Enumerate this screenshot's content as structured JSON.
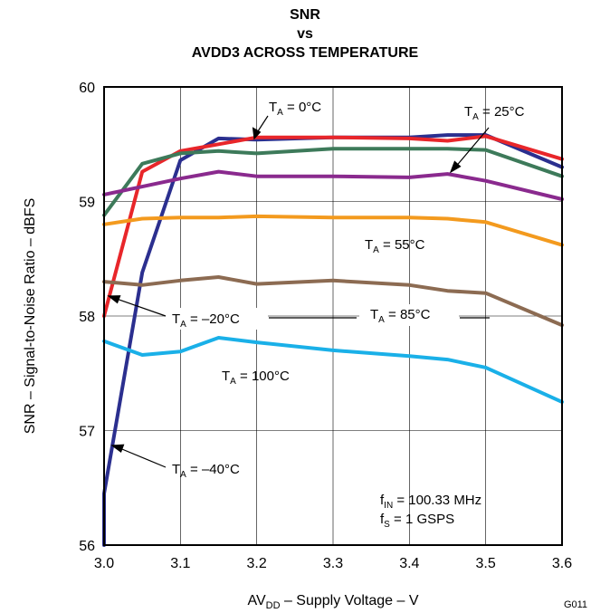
{
  "chart_data": {
    "type": "line",
    "title": [
      "SNR",
      "vs",
      "AVDD3 ACROSS TEMPERATURE"
    ],
    "xlabel": {
      "pre": "AV",
      "sub": "DD",
      "post": " – Supply Voltage – V"
    },
    "ylabel": "SNR – Signal-to-Noise Ratio – dBFS",
    "xlim": [
      3.0,
      3.6
    ],
    "ylim": [
      56,
      60
    ],
    "x_ticks": [
      3.0,
      3.1,
      3.2,
      3.3,
      3.4,
      3.5,
      3.6
    ],
    "y_ticks": [
      56,
      57,
      58,
      59,
      60
    ],
    "x_tick_labels": [
      "3.0",
      "3.1",
      "3.2",
      "3.3",
      "3.4",
      "3.5",
      "3.6"
    ],
    "y_tick_labels": [
      "56",
      "57",
      "58",
      "59",
      "60"
    ],
    "grid": true,
    "series": [
      {
        "name": "T_A = –40°C",
        "color": "#2b2f8f",
        "x": [
          3.0,
          3.0,
          3.05,
          3.1,
          3.15,
          3.2,
          3.3,
          3.4,
          3.45,
          3.5,
          3.6
        ],
        "y": [
          56.0,
          56.45,
          58.38,
          59.36,
          59.55,
          59.54,
          59.56,
          59.56,
          59.58,
          59.58,
          59.3
        ]
      },
      {
        "name": "T_A = –20°C",
        "color": "#e8262a",
        "x": [
          3.0,
          3.05,
          3.1,
          3.15,
          3.2,
          3.3,
          3.4,
          3.45,
          3.5,
          3.6
        ],
        "y": [
          58.0,
          59.26,
          59.44,
          59.5,
          59.56,
          59.56,
          59.55,
          59.53,
          59.57,
          59.37
        ]
      },
      {
        "name": "T_A = 0°C",
        "color": "#3d7a5a",
        "x": [
          3.0,
          3.05,
          3.1,
          3.15,
          3.2,
          3.3,
          3.4,
          3.45,
          3.5,
          3.6
        ],
        "y": [
          58.88,
          59.33,
          59.42,
          59.44,
          59.42,
          59.46,
          59.46,
          59.46,
          59.45,
          59.22
        ]
      },
      {
        "name": "T_A = 25°C",
        "color": "#8a2a8e",
        "x": [
          3.0,
          3.05,
          3.1,
          3.15,
          3.2,
          3.3,
          3.4,
          3.45,
          3.5,
          3.6
        ],
        "y": [
          59.06,
          59.13,
          59.2,
          59.26,
          59.22,
          59.22,
          59.21,
          59.24,
          59.18,
          59.02
        ]
      },
      {
        "name": "T_A = 55°C",
        "color": "#f39a1e",
        "x": [
          3.0,
          3.05,
          3.1,
          3.15,
          3.2,
          3.3,
          3.4,
          3.45,
          3.5,
          3.6
        ],
        "y": [
          58.8,
          58.85,
          58.86,
          58.86,
          58.87,
          58.86,
          58.86,
          58.85,
          58.82,
          58.62
        ]
      },
      {
        "name": "T_A = 85°C",
        "color": "#8c6b52",
        "x": [
          3.0,
          3.05,
          3.1,
          3.15,
          3.2,
          3.3,
          3.4,
          3.45,
          3.5,
          3.6
        ],
        "y": [
          58.3,
          58.27,
          58.31,
          58.34,
          58.28,
          58.31,
          58.27,
          58.22,
          58.2,
          57.92
        ]
      },
      {
        "name": "T_A = 100°C",
        "color": "#1ab0e8",
        "x": [
          3.0,
          3.05,
          3.1,
          3.15,
          3.2,
          3.3,
          3.4,
          3.45,
          3.5,
          3.6
        ],
        "y": [
          57.78,
          57.66,
          57.69,
          57.81,
          57.77,
          57.7,
          57.65,
          57.62,
          57.55,
          57.25
        ]
      }
    ],
    "annotations": {
      "t0": {
        "pre": "T",
        "sub": "A",
        "post": " = 0°C"
      },
      "t25": {
        "pre": "T",
        "sub": "A",
        "post": " = 25°C"
      },
      "t55": {
        "pre": "T",
        "sub": "A",
        "post": " = 55°C"
      },
      "tm20": {
        "pre": "T",
        "sub": "A",
        "post": " = –20°C"
      },
      "t85": {
        "pre": "T",
        "sub": "A",
        "post": " = 85°C"
      },
      "t100": {
        "pre": "T",
        "sub": "A",
        "post": " = 100°C"
      },
      "tm40": {
        "pre": "T",
        "sub": "A",
        "post": " = –40°C"
      },
      "fin": {
        "pre": "f",
        "sub": "IN",
        "post": " = 100.33 MHz"
      },
      "fs": {
        "pre": "f",
        "sub": "S",
        "post": " = 1 GSPS"
      }
    },
    "figure_code": "G011"
  }
}
